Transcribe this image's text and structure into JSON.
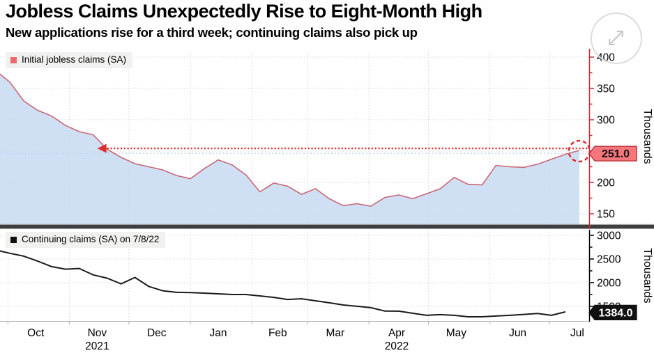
{
  "header": {
    "title": "Jobless Claims Unexpectedly Rise to Eight-Month High",
    "subtitle": "New applications rise for a third week; continuing claims also pick up"
  },
  "expand_button": {
    "icon": "expand-diagonal-arrows"
  },
  "x_axis": {
    "domain": {
      "start": "2021-09-27",
      "end": "2022-07-21"
    },
    "month_labels": [
      {
        "label": "Oct",
        "date": "2021-10-15"
      },
      {
        "label": "Nov",
        "date": "2021-11-15"
      },
      {
        "label": "Dec",
        "date": "2021-12-15"
      },
      {
        "label": "Jan",
        "date": "2022-01-15"
      },
      {
        "label": "Feb",
        "date": "2022-02-14"
      },
      {
        "label": "Mar",
        "date": "2022-03-15"
      },
      {
        "label": "Apr",
        "date": "2022-04-15"
      },
      {
        "label": "May",
        "date": "2022-05-15"
      },
      {
        "label": "Jun",
        "date": "2022-06-15"
      },
      {
        "label": "Jul",
        "date": "2022-07-15"
      }
    ],
    "year_labels": [
      {
        "label": "2021",
        "date": "2021-11-15"
      },
      {
        "label": "2022",
        "date": "2022-04-15"
      }
    ]
  },
  "chart_data": [
    {
      "type": "area",
      "position": "top",
      "legend": "Initial jobless claims (SA)",
      "ylabel": "Thousands",
      "y_ticks": [
        400,
        350,
        300,
        250,
        200,
        150
      ],
      "y_minor_ticks": [
        375,
        325,
        275,
        225,
        175
      ],
      "ylim": [
        132,
        408
      ],
      "last_value": 251,
      "last_value_label": "251.0",
      "annotation": {
        "type": "dotted-horizontal-arrow-left",
        "level": 251,
        "points_to_date": "2021-11-20",
        "circle_on_last_point": true
      },
      "colors": {
        "line": "#ca6776",
        "area": "#cfe0f4",
        "axis": "#d8282f",
        "legend_marker": "#ee686d",
        "tag_fill": "#f5767b",
        "tag_border": "#b3272d",
        "tag_text": "#111111",
        "annotation": "#dc2f32",
        "tracker": "#b8cfeb"
      },
      "x": [
        "2021-09-25",
        "2021-10-02",
        "2021-10-09",
        "2021-10-16",
        "2021-10-23",
        "2021-10-30",
        "2021-11-06",
        "2021-11-13",
        "2021-11-20",
        "2021-11-27",
        "2021-12-04",
        "2021-12-11",
        "2021-12-18",
        "2021-12-25",
        "2022-01-01",
        "2022-01-08",
        "2022-01-15",
        "2022-01-22",
        "2022-01-29",
        "2022-02-05",
        "2022-02-12",
        "2022-02-19",
        "2022-02-26",
        "2022-03-05",
        "2022-03-12",
        "2022-03-19",
        "2022-03-26",
        "2022-04-02",
        "2022-04-09",
        "2022-04-16",
        "2022-04-23",
        "2022-04-30",
        "2022-05-07",
        "2022-05-14",
        "2022-05-21",
        "2022-05-28",
        "2022-06-04",
        "2022-06-11",
        "2022-06-18",
        "2022-06-25",
        "2022-07-02",
        "2022-07-09",
        "2022-07-16"
      ],
      "values": [
        378,
        360,
        330,
        315,
        306,
        291,
        281,
        276,
        253,
        240,
        230,
        225,
        220,
        211,
        206,
        222,
        236,
        228,
        212,
        185,
        199,
        194,
        181,
        190,
        174,
        163,
        166,
        162,
        176,
        180,
        174,
        182,
        190,
        208,
        197,
        196,
        227,
        225,
        224,
        229,
        237,
        245,
        251
      ]
    },
    {
      "type": "line",
      "position": "bottom",
      "legend": "Continuing claims (SA) on 7/8/22",
      "ylabel": "Thousands",
      "y_ticks": [
        3000,
        2500,
        2000,
        1500
      ],
      "y_minor_ticks": [
        2750,
        2250,
        1750
      ],
      "ylim": [
        1190,
        3120
      ],
      "last_value": 1384,
      "last_value_label": "1384.0",
      "colors": {
        "line": "#1a1a1a",
        "axis": "#000000",
        "legend_marker": "#111111",
        "tag_fill": "#111111",
        "tag_border": "#111111",
        "tag_text": "#ffffff"
      },
      "x": [
        "2021-09-25",
        "2021-10-02",
        "2021-10-09",
        "2021-10-16",
        "2021-10-23",
        "2021-10-30",
        "2021-11-06",
        "2021-11-13",
        "2021-11-20",
        "2021-11-27",
        "2021-12-04",
        "2021-12-11",
        "2021-12-18",
        "2021-12-25",
        "2022-01-01",
        "2022-01-08",
        "2022-01-15",
        "2022-01-22",
        "2022-01-29",
        "2022-02-05",
        "2022-02-12",
        "2022-02-19",
        "2022-02-26",
        "2022-03-05",
        "2022-03-12",
        "2022-03-19",
        "2022-03-26",
        "2022-04-02",
        "2022-04-09",
        "2022-04-16",
        "2022-04-23",
        "2022-04-30",
        "2022-05-07",
        "2022-05-14",
        "2022-05-21",
        "2022-05-28",
        "2022-06-04",
        "2022-06-11",
        "2022-06-18",
        "2022-06-25",
        "2022-07-02",
        "2022-07-09"
      ],
      "values": [
        2690,
        2620,
        2560,
        2455,
        2340,
        2285,
        2300,
        2165,
        2095,
        1975,
        2110,
        1920,
        1830,
        1795,
        1790,
        1780,
        1765,
        1750,
        1750,
        1720,
        1690,
        1645,
        1660,
        1618,
        1575,
        1530,
        1502,
        1472,
        1400,
        1398,
        1355,
        1310,
        1325,
        1310,
        1280,
        1280,
        1295,
        1310,
        1330,
        1350,
        1310,
        1384
      ]
    }
  ]
}
